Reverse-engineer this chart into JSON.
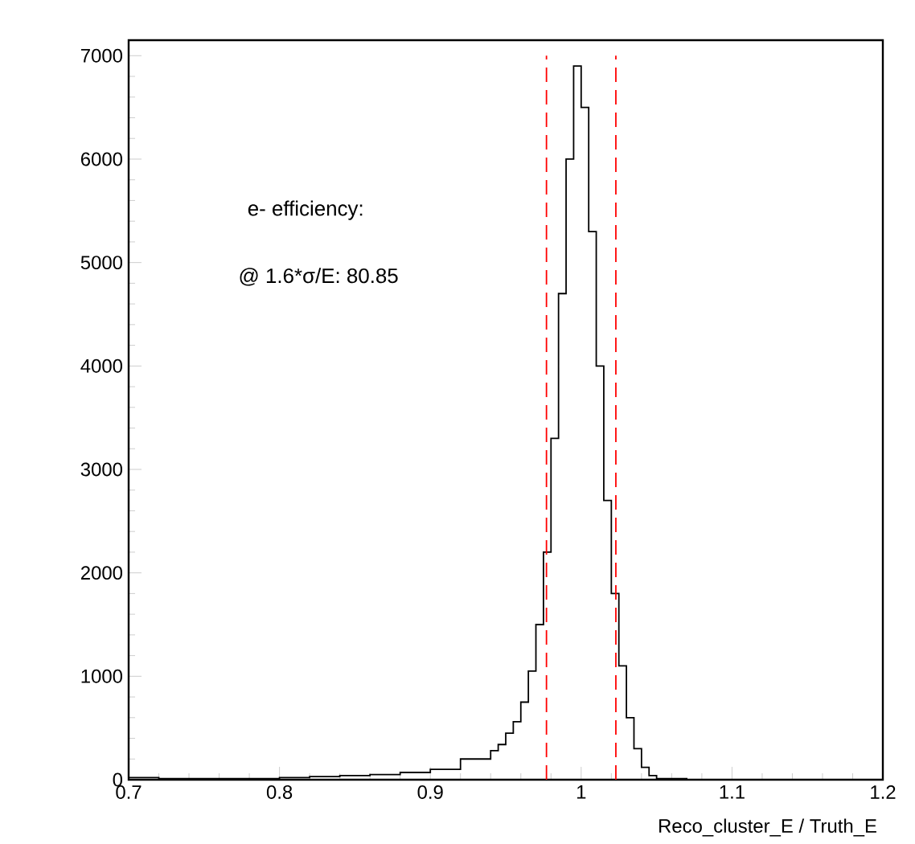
{
  "chart_data": {
    "type": "histogram",
    "xlabel": "Reco_cluster_E / Truth_E",
    "annotations": [
      "e- efficiency:",
      "@ 1.6*σ/E: 80.85"
    ],
    "bins": [
      0.7,
      0.72,
      0.74,
      0.76,
      0.78,
      0.8,
      0.82,
      0.84,
      0.86,
      0.88,
      0.9,
      0.92,
      0.94,
      0.945,
      0.95,
      0.955,
      0.96,
      0.965,
      0.97,
      0.975,
      0.98,
      0.985,
      0.99,
      0.995,
      1.0,
      1.005,
      1.01,
      1.015,
      1.02,
      1.025,
      1.03,
      1.035,
      1.04,
      1.045,
      1.05,
      1.07,
      1.2
    ],
    "values": [
      20,
      10,
      10,
      10,
      10,
      20,
      30,
      40,
      50,
      70,
      100,
      200,
      280,
      340,
      450,
      560,
      750,
      1050,
      1500,
      2200,
      3300,
      4700,
      6000,
      6900,
      6500,
      5300,
      4000,
      2700,
      1800,
      1100,
      600,
      300,
      120,
      40,
      10,
      0
    ],
    "color": "#000000",
    "xlim": [
      0.7,
      1.2
    ],
    "xticks": [
      0.7,
      0.8,
      0.9,
      1,
      1.1,
      1.2
    ],
    "ylim": [
      0,
      7150
    ],
    "yticks": [
      0,
      1000,
      2000,
      3000,
      4000,
      5000,
      6000,
      7000
    ],
    "ref_lines": [
      {
        "axis": "x",
        "value": 0.977,
        "color": "#ff0000",
        "line_style": "dashed"
      },
      {
        "axis": "x",
        "value": 1.023,
        "color": "#ff0000",
        "line_style": "dashed"
      }
    ],
    "grid": false
  }
}
